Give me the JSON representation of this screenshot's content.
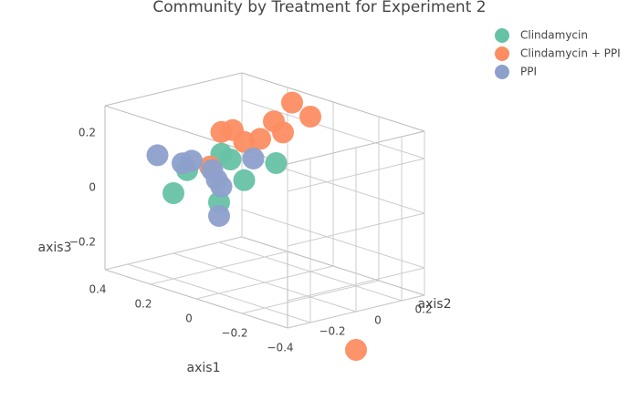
{
  "chart_data": {
    "type": "scatter3d",
    "title": "Community by Treatment for Experiment 2",
    "xlabel": "axis1",
    "ylabel": "axis2",
    "zlabel": "axis3",
    "xlim": [
      -0.4,
      0.4
    ],
    "ylim": [
      -0.3,
      0.3
    ],
    "zlim": [
      -0.3,
      0.3
    ],
    "xticks": [
      {
        "value": -0.4,
        "label": "−0.4"
      },
      {
        "value": -0.2,
        "label": "−0.2"
      },
      0,
      0.2,
      0.4
    ],
    "yticks": [
      {
        "value": -0.2,
        "label": "−0.2"
      },
      0,
      0.2
    ],
    "zticks": [
      {
        "value": -0.2,
        "label": "−0.2"
      },
      0,
      0.2
    ],
    "grid": true,
    "legend": "top-right",
    "series": [
      {
        "name": "Clindamycin",
        "color": "#66c2a5",
        "x": [
          0.4,
          0.34,
          0.2,
          0.19,
          0.15,
          0.09,
          -0.05
        ],
        "y": [
          0,
          0,
          0,
          0,
          0,
          0,
          0
        ],
        "z": [
          -0.08,
          0.02,
          -0.06,
          0.12,
          0.11,
          0.05,
          0.15
        ]
      },
      {
        "name": "Clindamycin + PPI",
        "color": "#fc8d62",
        "x": [
          -0.12,
          -0.2,
          -0.04,
          -0.08,
          0.02,
          0.14,
          0.19,
          0.09,
          0.24,
          -0.4
        ],
        "y": [
          0,
          0,
          0,
          0,
          0,
          0,
          0,
          0,
          0,
          0
        ],
        "z": [
          0.39,
          0.36,
          0.3,
          0.27,
          0.22,
          0.22,
          0.2,
          0.19,
          0.06,
          -0.44
        ]
      },
      {
        "name": "PPI",
        "color": "#8da0cb",
        "x": [
          0.47,
          0.36,
          0.32,
          0.21,
          0.19,
          0.05,
          0.2,
          0.23
        ],
        "y": [
          0,
          0,
          0,
          0,
          0,
          0,
          0,
          0
        ],
        "z": [
          0.04,
          0.04,
          0.06,
          0.02,
          0.0,
          0.14,
          -0.11,
          0.05
        ]
      }
    ]
  }
}
